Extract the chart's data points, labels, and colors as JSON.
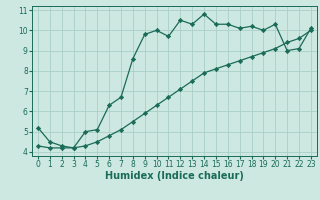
{
  "xlabel": "Humidex (Indice chaleur)",
  "bg_color": "#cde8e0",
  "grid_color": "#aacfc6",
  "line_color": "#1a6b58",
  "upper_x": [
    0,
    1,
    2,
    3,
    4,
    5,
    6,
    7,
    8,
    9,
    10,
    11,
    12,
    13,
    14,
    15,
    16,
    17,
    18,
    19,
    20,
    21,
    22,
    23
  ],
  "upper_y": [
    5.2,
    4.5,
    4.3,
    4.2,
    5.0,
    5.1,
    6.3,
    6.7,
    8.6,
    9.8,
    10.0,
    9.7,
    10.5,
    10.3,
    10.8,
    10.3,
    10.3,
    10.1,
    10.2,
    10.0,
    10.3,
    9.0,
    9.1,
    10.1
  ],
  "lower_x": [
    0,
    1,
    2,
    3,
    4,
    5,
    6,
    7,
    8,
    9,
    10,
    11,
    12,
    13,
    14,
    15,
    16,
    17,
    18,
    19,
    20,
    21,
    22,
    23
  ],
  "lower_y": [
    4.3,
    4.2,
    4.2,
    4.2,
    4.3,
    4.5,
    4.8,
    5.1,
    5.5,
    5.9,
    6.3,
    6.7,
    7.1,
    7.5,
    7.9,
    8.1,
    8.3,
    8.5,
    8.7,
    8.9,
    9.1,
    9.4,
    9.6,
    10.0
  ],
  "xlim": [
    -0.5,
    23.5
  ],
  "ylim": [
    3.8,
    11.2
  ],
  "yticks": [
    4,
    5,
    6,
    7,
    8,
    9,
    10,
    11
  ],
  "xticks": [
    0,
    1,
    2,
    3,
    4,
    5,
    6,
    7,
    8,
    9,
    10,
    11,
    12,
    13,
    14,
    15,
    16,
    17,
    18,
    19,
    20,
    21,
    22,
    23
  ],
  "marker": "D",
  "markersize": 2.2,
  "linewidth": 0.9,
  "xlabel_fontsize": 7,
  "tick_fontsize": 5.5
}
